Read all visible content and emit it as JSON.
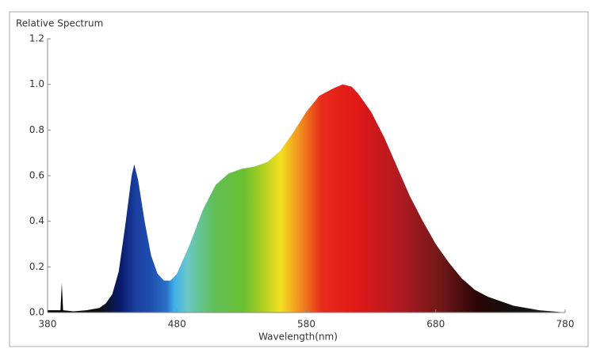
{
  "chart_data": {
    "type": "area",
    "y_label": "Relative Spectrum",
    "x_label": "Wavelength(nm)",
    "x": [
      380,
      390,
      391,
      392,
      400,
      410,
      420,
      425,
      430,
      435,
      440,
      445,
      447,
      450,
      455,
      460,
      465,
      470,
      475,
      480,
      490,
      500,
      510,
      520,
      530,
      540,
      550,
      560,
      570,
      580,
      590,
      600,
      608,
      615,
      620,
      630,
      640,
      650,
      660,
      670,
      680,
      690,
      700,
      710,
      720,
      730,
      740,
      750,
      760,
      770,
      780
    ],
    "values": [
      0.01,
      0.01,
      0.13,
      0.01,
      0.005,
      0.01,
      0.02,
      0.04,
      0.08,
      0.18,
      0.38,
      0.6,
      0.65,
      0.58,
      0.4,
      0.25,
      0.17,
      0.14,
      0.14,
      0.17,
      0.3,
      0.45,
      0.56,
      0.61,
      0.63,
      0.64,
      0.66,
      0.71,
      0.79,
      0.88,
      0.95,
      0.98,
      1.0,
      0.99,
      0.96,
      0.88,
      0.77,
      0.64,
      0.51,
      0.4,
      0.3,
      0.22,
      0.15,
      0.1,
      0.07,
      0.05,
      0.03,
      0.02,
      0.01,
      0.005,
      0.0
    ],
    "xlim": [
      380,
      780
    ],
    "ylim": [
      0,
      1.2
    ],
    "xticks": [
      380,
      480,
      580,
      680,
      780
    ],
    "yticks": [
      {
        "value": 0,
        "label": "0.0"
      },
      0.2,
      0.4,
      0.6,
      0.8,
      {
        "value": 1,
        "label": "1.0"
      },
      1.2
    ]
  }
}
